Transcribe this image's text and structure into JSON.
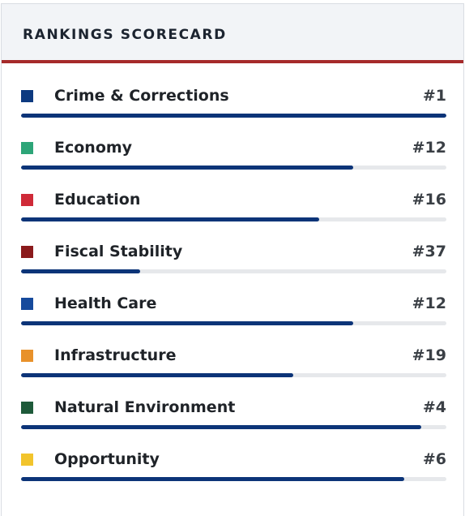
{
  "header": {
    "title": "RANKINGS SCORECARD"
  },
  "theme": {
    "bar_fill": "#0c3478",
    "bar_track": "#e6e8eb",
    "header_rule": "#a52a2a"
  },
  "rankings": [
    {
      "label": "Crime & Corrections",
      "rank": "#1",
      "color": "#0d3a80",
      "bar_fraction": 1.0
    },
    {
      "label": "Economy",
      "rank": "#12",
      "color": "#2da578",
      "bar_fraction": 0.78
    },
    {
      "label": "Education",
      "rank": "#16",
      "color": "#cf2a38",
      "bar_fraction": 0.7
    },
    {
      "label": "Fiscal Stability",
      "rank": "#37",
      "color": "#8b1a1c",
      "bar_fraction": 0.28
    },
    {
      "label": "Health Care",
      "rank": "#12",
      "color": "#164a9c",
      "bar_fraction": 0.78
    },
    {
      "label": "Infrastructure",
      "rank": "#19",
      "color": "#e8912a",
      "bar_fraction": 0.64
    },
    {
      "label": "Natural Environment",
      "rank": "#4",
      "color": "#1e5a3a",
      "bar_fraction": 0.94
    },
    {
      "label": "Opportunity",
      "rank": "#6",
      "color": "#f2c42c",
      "bar_fraction": 0.9
    }
  ]
}
